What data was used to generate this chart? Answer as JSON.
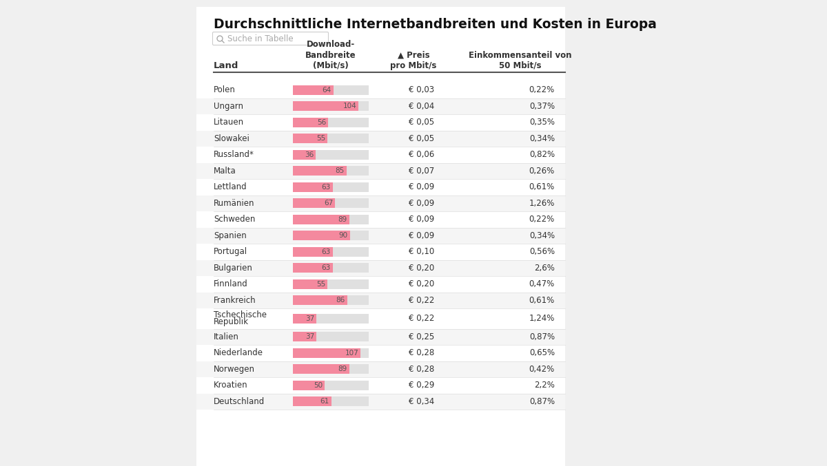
{
  "title": "Durchschnittliche Internetbandbreiten und Kosten in Europa",
  "search_placeholder": "Suche in Tabelle",
  "rows": [
    {
      "land": "Polen",
      "bandwidth": 64,
      "preis": "€ 0,03",
      "anteil": "0,22%"
    },
    {
      "land": "Ungarn",
      "bandwidth": 104,
      "preis": "€ 0,04",
      "anteil": "0,37%"
    },
    {
      "land": "Litauen",
      "bandwidth": 56,
      "preis": "€ 0,05",
      "anteil": "0,35%"
    },
    {
      "land": "Slowakei",
      "bandwidth": 55,
      "preis": "€ 0,05",
      "anteil": "0,34%"
    },
    {
      "land": "Russland*",
      "bandwidth": 36,
      "preis": "€ 0,06",
      "anteil": "0,82%"
    },
    {
      "land": "Malta",
      "bandwidth": 85,
      "preis": "€ 0,07",
      "anteil": "0,26%"
    },
    {
      "land": "Lettland",
      "bandwidth": 63,
      "preis": "€ 0,09",
      "anteil": "0,61%"
    },
    {
      "land": "Rumänien",
      "bandwidth": 67,
      "preis": "€ 0,09",
      "anteil": "1,26%"
    },
    {
      "land": "Schweden",
      "bandwidth": 89,
      "preis": "€ 0,09",
      "anteil": "0,22%"
    },
    {
      "land": "Spanien",
      "bandwidth": 90,
      "preis": "€ 0,09",
      "anteil": "0,34%"
    },
    {
      "land": "Portugal",
      "bandwidth": 63,
      "preis": "€ 0,10",
      "anteil": "0,56%"
    },
    {
      "land": "Bulgarien",
      "bandwidth": 63,
      "preis": "€ 0,20",
      "anteil": "2,6%"
    },
    {
      "land": "Finnland",
      "bandwidth": 55,
      "preis": "€ 0,20",
      "anteil": "0,47%"
    },
    {
      "land": "Frankreich",
      "bandwidth": 86,
      "preis": "€ 0,22",
      "anteil": "0,61%"
    },
    {
      "land": "Tschechische\nRepublik",
      "bandwidth": 37,
      "preis": "€ 0,22",
      "anteil": "1,24%"
    },
    {
      "land": "Italien",
      "bandwidth": 37,
      "preis": "€ 0,25",
      "anteil": "0,87%"
    },
    {
      "land": "Niederlande",
      "bandwidth": 107,
      "preis": "€ 0,28",
      "anteil": "0,65%"
    },
    {
      "land": "Norwegen",
      "bandwidth": 89,
      "preis": "€ 0,28",
      "anteil": "0,42%"
    },
    {
      "land": "Kroatien",
      "bandwidth": 50,
      "preis": "€ 0,29",
      "anteil": "2,2%"
    },
    {
      "land": "Deutschland",
      "bandwidth": 61,
      "preis": "€ 0,34",
      "anteil": "0,87%"
    }
  ],
  "bar_color_pink": "#f4899e",
  "bar_bg_color": "#e0e0e0",
  "max_bandwidth": 120,
  "page_bg": "#f0f0f0",
  "content_bg": "#ffffff",
  "row_alt_bg": "#f5f5f5",
  "header_line_color": "#555555",
  "row_line_color": "#dddddd",
  "title_color": "#111111",
  "text_color": "#333333",
  "search_box_bg": "#ffffff",
  "search_border_color": "#cccccc",
  "num_color": "#555555"
}
